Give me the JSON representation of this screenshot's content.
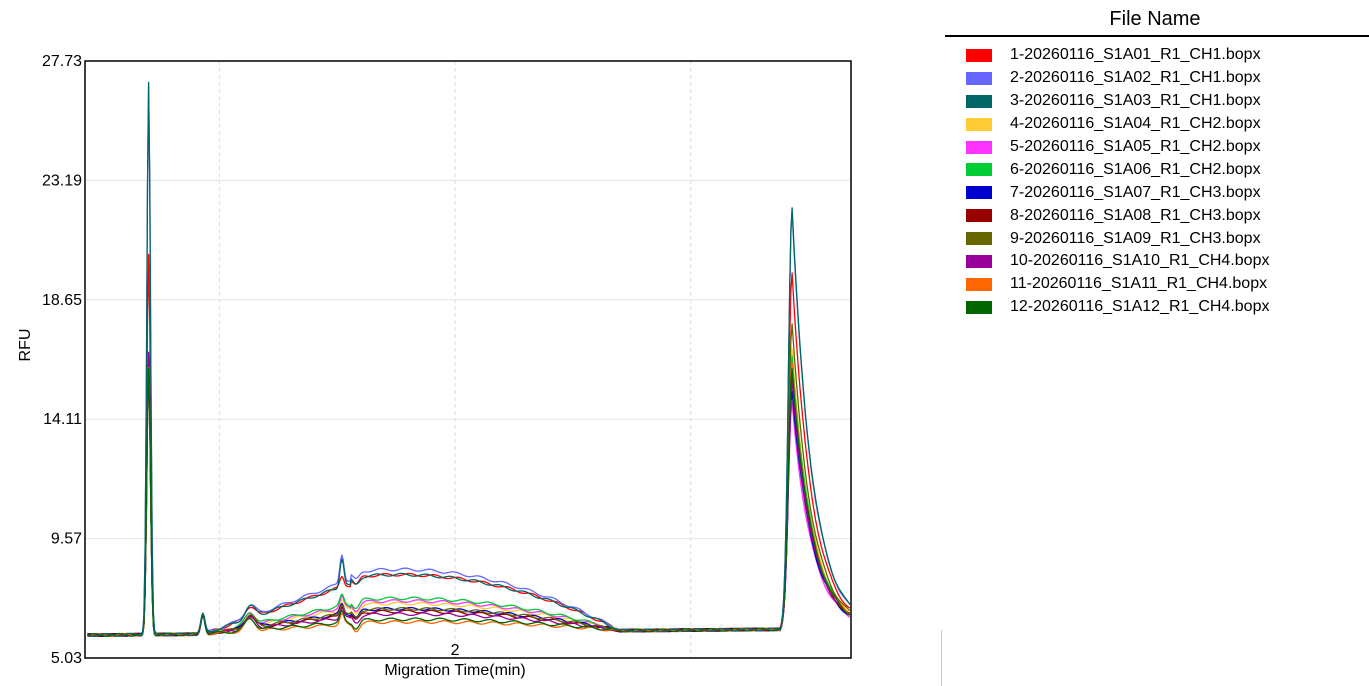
{
  "chart_data": {
    "type": "line",
    "ylabel": "RFU",
    "xlabel": "Migration Time(min)",
    "ylim": [
      5.03,
      27.73
    ],
    "xlim": [
      0.43,
      3.68
    ],
    "yticks": [
      "5.03",
      "9.57",
      "14.11",
      "18.65",
      "23.19",
      "27.73"
    ],
    "xticks": [
      {
        "value": 2,
        "label": "2"
      }
    ],
    "minor_x_gridlines": [
      1.0,
      3.0
    ],
    "grid": true,
    "legend_title": "File Name",
    "legend_position": "right",
    "series": [
      {
        "name": "1-20260116_S1A01_R1_CH1.bopx",
        "color": "#ff0000",
        "peak1": 20.4,
        "peak2": 20.0,
        "ridge": 8.6
      },
      {
        "name": "2-20260116_S1A02_R1_CH1.bopx",
        "color": "#6666ff",
        "peak1": 26.8,
        "peak2": 22.3,
        "ridge": 8.8
      },
      {
        "name": "3-20260116_S1A03_R1_CH1.bopx",
        "color": "#006666",
        "peak1": 26.9,
        "peak2": 22.4,
        "ridge": 8.6
      },
      {
        "name": "4-20260116_S1A04_R1_CH2.bopx",
        "color": "#ffcc33",
        "peak1": 16.0,
        "peak2": 17.0,
        "ridge": 7.5
      },
      {
        "name": "5-20260116_S1A05_R1_CH2.bopx",
        "color": "#ff33ff",
        "peak1": 16.5,
        "peak2": 15.0,
        "ridge": 7.6
      },
      {
        "name": "6-20260116_S1A06_R1_CH2.bopx",
        "color": "#00cc33",
        "peak1": 16.0,
        "peak2": 16.8,
        "ridge": 7.7
      },
      {
        "name": "7-20260116_S1A07_R1_CH3.bopx",
        "color": "#0000cc",
        "peak1": 16.4,
        "peak2": 15.5,
        "ridge": 7.3
      },
      {
        "name": "8-20260116_S1A08_R1_CH3.bopx",
        "color": "#990000",
        "peak1": 16.1,
        "peak2": 16.0,
        "ridge": 7.2
      },
      {
        "name": "9-20260116_S1A09_R1_CH3.bopx",
        "color": "#666600",
        "peak1": 16.2,
        "peak2": 18.0,
        "ridge": 7.3
      },
      {
        "name": "10-20260116_S1A10_R1_CH4.bopx",
        "color": "#990099",
        "peak1": 16.6,
        "peak2": 15.8,
        "ridge": 7.1
      },
      {
        "name": "11-20260116_S1A11_R1_CH4.bopx",
        "color": "#ff6600",
        "peak1": 16.0,
        "peak2": 16.5,
        "ridge": 6.8
      },
      {
        "name": "12-20260116_S1A12_R1_CH4.bopx",
        "color": "#006600",
        "peak1": 16.0,
        "peak2": 16.3,
        "ridge": 6.9
      }
    ]
  }
}
